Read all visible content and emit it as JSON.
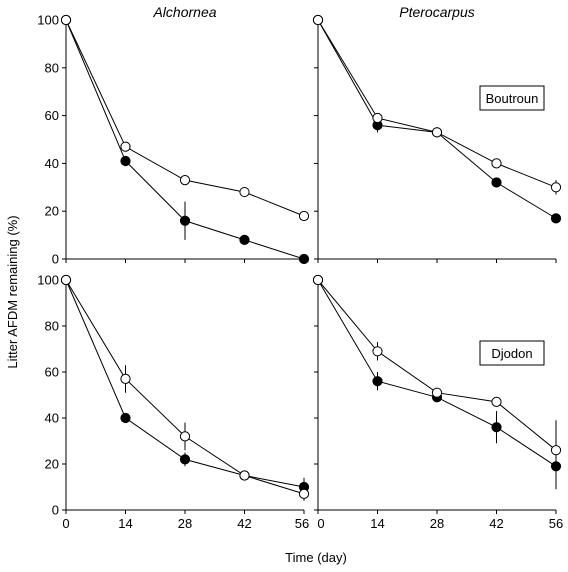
{
  "figure": {
    "ylabel": "Litter AFDM remaining (%)",
    "xlabel": "Time (day)"
  },
  "chart_data": [
    {
      "type": "line",
      "panel": "top-left",
      "column_title": "Alchornea",
      "site_label": "",
      "x": [
        0,
        14,
        28,
        42,
        56
      ],
      "xticks": [
        0,
        14,
        28,
        42,
        56
      ],
      "xlim": [
        0,
        56
      ],
      "ylim": [
        0,
        100
      ],
      "yticks": [
        0,
        20,
        40,
        60,
        80,
        100
      ],
      "series": [
        {
          "marker": "open-circle",
          "values": [
            100,
            47,
            33,
            28,
            18
          ],
          "err": [
            0,
            1,
            1,
            1,
            1
          ]
        },
        {
          "marker": "filled-circle",
          "values": [
            100,
            41,
            16,
            8,
            0
          ],
          "err": [
            0,
            1,
            8,
            1,
            0
          ]
        }
      ]
    },
    {
      "type": "line",
      "panel": "top-right",
      "column_title": "Pterocarpus",
      "site_label": "Boutroun",
      "x": [
        0,
        14,
        28,
        42,
        56
      ],
      "xticks": [
        0,
        14,
        28,
        42,
        56
      ],
      "xlim": [
        0,
        56
      ],
      "ylim": [
        0,
        100
      ],
      "yticks": [
        0,
        20,
        40,
        60,
        80,
        100
      ],
      "series": [
        {
          "marker": "open-circle",
          "values": [
            100,
            59,
            53,
            40,
            30
          ],
          "err": [
            0,
            1,
            1,
            1,
            3
          ]
        },
        {
          "marker": "filled-circle",
          "values": [
            100,
            56,
            53,
            32,
            17
          ],
          "err": [
            0,
            3,
            1,
            1,
            1
          ]
        }
      ]
    },
    {
      "type": "line",
      "panel": "bottom-left",
      "column_title": "",
      "site_label": "",
      "x": [
        0,
        14,
        28,
        42,
        56
      ],
      "xticks": [
        0,
        14,
        28,
        42,
        56
      ],
      "xlim": [
        0,
        56
      ],
      "ylim": [
        0,
        100
      ],
      "yticks": [
        0,
        20,
        40,
        60,
        80,
        100
      ],
      "series": [
        {
          "marker": "open-circle",
          "values": [
            100,
            57,
            32,
            15,
            7
          ],
          "err": [
            0,
            6,
            6,
            1,
            3
          ]
        },
        {
          "marker": "filled-circle",
          "values": [
            100,
            40,
            22,
            15,
            10
          ],
          "err": [
            0,
            2,
            3,
            1,
            4
          ]
        }
      ]
    },
    {
      "type": "line",
      "panel": "bottom-right",
      "column_title": "",
      "site_label": "Djodon",
      "x": [
        0,
        14,
        28,
        42,
        56
      ],
      "xticks": [
        0,
        14,
        28,
        42,
        56
      ],
      "xlim": [
        0,
        56
      ],
      "ylim": [
        0,
        100
      ],
      "yticks": [
        0,
        20,
        40,
        60,
        80,
        100
      ],
      "series": [
        {
          "marker": "open-circle",
          "values": [
            100,
            69,
            51,
            47,
            26
          ],
          "err": [
            0,
            4,
            1,
            1,
            13
          ]
        },
        {
          "marker": "filled-circle",
          "values": [
            100,
            56,
            49,
            36,
            19
          ],
          "err": [
            0,
            4,
            1,
            7,
            10
          ]
        }
      ]
    }
  ]
}
